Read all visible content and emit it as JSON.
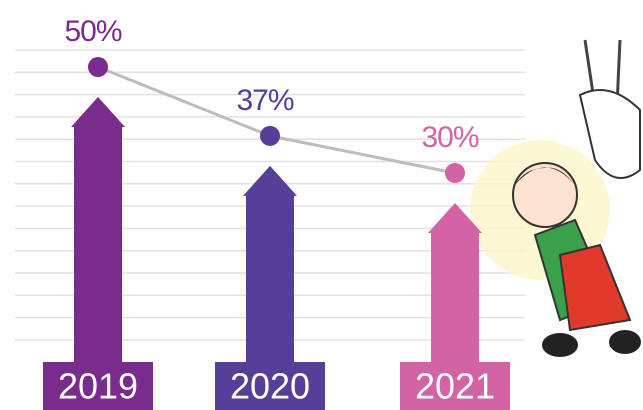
{
  "chart_data": {
    "type": "arrow-bar-line",
    "categories": [
      "2019",
      "2020",
      "2021"
    ],
    "values": [
      50,
      37,
      30
    ],
    "value_labels": [
      "50%",
      "37%",
      "30%"
    ],
    "colors": [
      "#7a2c8c",
      "#553f98",
      "#d264a6"
    ],
    "line_color": "#bdbdbd"
  }
}
